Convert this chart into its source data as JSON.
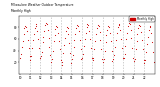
{
  "title": "Milwaukee Weather Outdoor Temperature",
  "subtitle": "Monthly High",
  "bg_color": "#ffffff",
  "plot_bg": "#ffffff",
  "line_color": "#cc0000",
  "marker_color": "#cc0000",
  "grid_color": "#bbbbbb",
  "text_color": "#000000",
  "years": [
    2010,
    2011,
    2012,
    2013,
    2014,
    2015,
    2016,
    2017,
    2018,
    2019,
    2020,
    2021,
    2022
  ],
  "temps": [
    28,
    35,
    47,
    57,
    68,
    79,
    83,
    81,
    73,
    59,
    44,
    30,
    24,
    30,
    44,
    58,
    68,
    79,
    85,
    83,
    74,
    60,
    44,
    27,
    30,
    38,
    54,
    63,
    74,
    84,
    87,
    85,
    76,
    62,
    47,
    33,
    20,
    26,
    40,
    56,
    66,
    77,
    83,
    80,
    70,
    56,
    42,
    24,
    16,
    20,
    36,
    50,
    62,
    74,
    80,
    78,
    69,
    53,
    36,
    18,
    26,
    32,
    46,
    58,
    68,
    79,
    84,
    82,
    73,
    58,
    42,
    26,
    28,
    34,
    48,
    60,
    70,
    80,
    86,
    84,
    74,
    60,
    44,
    28,
    24,
    28,
    42,
    56,
    68,
    78,
    84,
    82,
    72,
    58,
    42,
    26,
    20,
    26,
    40,
    54,
    66,
    76,
    82,
    80,
    70,
    56,
    40,
    22,
    26,
    32,
    46,
    58,
    70,
    80,
    86,
    84,
    76,
    60,
    44,
    28,
    28,
    34,
    48,
    60,
    70,
    82,
    87,
    85,
    76,
    62,
    44,
    28,
    22,
    26,
    42,
    56,
    68,
    78,
    84,
    82,
    72,
    58,
    42,
    24,
    18,
    24,
    38,
    52,
    64,
    76,
    82,
    80,
    70,
    54,
    38,
    20
  ],
  "ylim": [
    0,
    100
  ],
  "yticks": [
    20,
    40,
    60,
    80
  ],
  "legend_label": "Monthly High",
  "legend_color": "#cc0000",
  "n_months": 12
}
